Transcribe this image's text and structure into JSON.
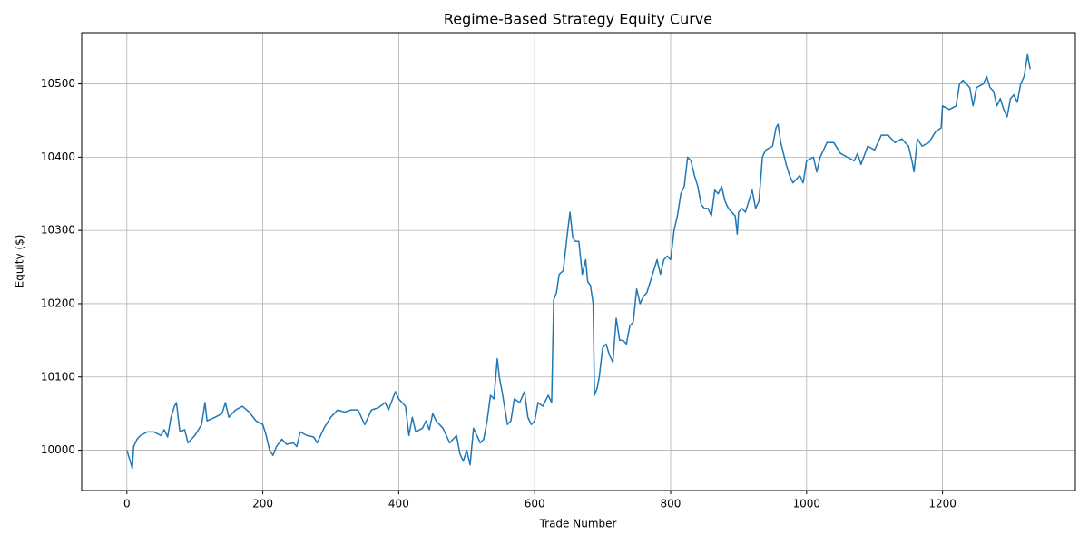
{
  "chart_data": {
    "type": "line",
    "title": "Regime-Based Strategy Equity Curve",
    "x_label": "Trade Number",
    "y_label": "Equity ($)",
    "xlim": [
      -66.45,
      1395.45
    ],
    "xticks": [
      0,
      200,
      400,
      600,
      800,
      1000,
      1200
    ],
    "ylim": [
      9945,
      10570
    ],
    "yticks": [
      10000,
      10100,
      10200,
      10300,
      10400,
      10500
    ],
    "grid": true,
    "x": [
      0,
      5,
      8,
      10,
      15,
      20,
      30,
      40,
      50,
      55,
      60,
      65,
      70,
      73,
      78,
      85,
      90,
      100,
      110,
      115,
      118,
      130,
      140,
      145,
      150,
      160,
      170,
      180,
      190,
      200,
      205,
      210,
      215,
      220,
      228,
      235,
      245,
      250,
      255,
      265,
      275,
      280,
      290,
      300,
      310,
      320,
      330,
      340,
      350,
      360,
      370,
      380,
      385,
      395,
      400,
      410,
      415,
      420,
      425,
      435,
      440,
      445,
      450,
      455,
      465,
      475,
      485,
      490,
      495,
      500,
      505,
      510,
      515,
      520,
      525,
      530,
      535,
      540,
      545,
      548,
      552,
      560,
      565,
      570,
      578,
      585,
      590,
      595,
      600,
      605,
      612,
      620,
      625,
      628,
      632,
      636,
      642,
      648,
      652,
      656,
      660,
      665,
      670,
      675,
      678,
      682,
      686,
      688,
      692,
      695,
      700,
      705,
      710,
      715,
      720,
      725,
      730,
      735,
      740,
      745,
      750,
      755,
      760,
      765,
      770,
      775,
      780,
      785,
      790,
      795,
      800,
      805,
      810,
      815,
      820,
      825,
      830,
      835,
      840,
      845,
      850,
      855,
      860,
      865,
      870,
      875,
      880,
      885,
      890,
      895,
      898,
      900,
      905,
      910,
      915,
      920,
      925,
      930,
      935,
      940,
      950,
      955,
      958,
      962,
      970,
      975,
      980,
      985,
      990,
      995,
      1000,
      1010,
      1015,
      1020,
      1030,
      1040,
      1050,
      1060,
      1070,
      1075,
      1080,
      1090,
      1100,
      1110,
      1120,
      1130,
      1140,
      1150,
      1155,
      1158,
      1163,
      1170,
      1180,
      1190,
      1198,
      1200,
      1210,
      1220,
      1225,
      1230,
      1240,
      1245,
      1250,
      1260,
      1265,
      1270,
      1275,
      1280,
      1285,
      1290,
      1295,
      1300,
      1305,
      1310,
      1315,
      1320,
      1325,
      1329
    ],
    "series": [
      {
        "name": "Equity",
        "color": "#1f77b4",
        "values": [
          10000,
          9985,
          9975,
          10005,
          10015,
          10020,
          10025,
          10025,
          10020,
          10028,
          10018,
          10045,
          10060,
          10065,
          10025,
          10028,
          10010,
          10020,
          10035,
          10065,
          10040,
          10045,
          10050,
          10065,
          10045,
          10055,
          10060,
          10052,
          10040,
          10035,
          10020,
          10000,
          9993,
          10005,
          10015,
          10008,
          10010,
          10005,
          10025,
          10020,
          10018,
          10010,
          10030,
          10045,
          10055,
          10052,
          10055,
          10055,
          10035,
          10055,
          10058,
          10065,
          10055,
          10080,
          10070,
          10060,
          10020,
          10045,
          10025,
          10030,
          10040,
          10028,
          10050,
          10040,
          10030,
          10010,
          10020,
          9995,
          9985,
          10000,
          9980,
          10030,
          10020,
          10010,
          10015,
          10040,
          10075,
          10070,
          10125,
          10100,
          10080,
          10035,
          10040,
          10070,
          10065,
          10080,
          10045,
          10035,
          10040,
          10065,
          10060,
          10075,
          10065,
          10205,
          10215,
          10240,
          10245,
          10295,
          10325,
          10290,
          10285,
          10285,
          10240,
          10260,
          10230,
          10225,
          10200,
          10075,
          10085,
          10100,
          10140,
          10145,
          10130,
          10120,
          10180,
          10150,
          10150,
          10145,
          10170,
          10175,
          10220,
          10200,
          10210,
          10215,
          10230,
          10245,
          10260,
          10240,
          10260,
          10265,
          10260,
          10300,
          10320,
          10350,
          10360,
          10400,
          10395,
          10375,
          10360,
          10335,
          10330,
          10330,
          10320,
          10355,
          10350,
          10360,
          10340,
          10330,
          10325,
          10320,
          10295,
          10325,
          10330,
          10325,
          10340,
          10355,
          10330,
          10340,
          10400,
          10410,
          10415,
          10440,
          10445,
          10420,
          10390,
          10375,
          10365,
          10370,
          10375,
          10365,
          10395,
          10400,
          10380,
          10400,
          10420,
          10420,
          10405,
          10400,
          10395,
          10405,
          10390,
          10415,
          10410,
          10430,
          10430,
          10420,
          10425,
          10415,
          10395,
          10380,
          10425,
          10415,
          10420,
          10435,
          10440,
          10470,
          10465,
          10470,
          10500,
          10505,
          10495,
          10470,
          10495,
          10500,
          10510,
          10495,
          10490,
          10470,
          10480,
          10465,
          10455,
          10480,
          10485,
          10475,
          10500,
          10510,
          10540,
          10520
        ]
      }
    ]
  }
}
